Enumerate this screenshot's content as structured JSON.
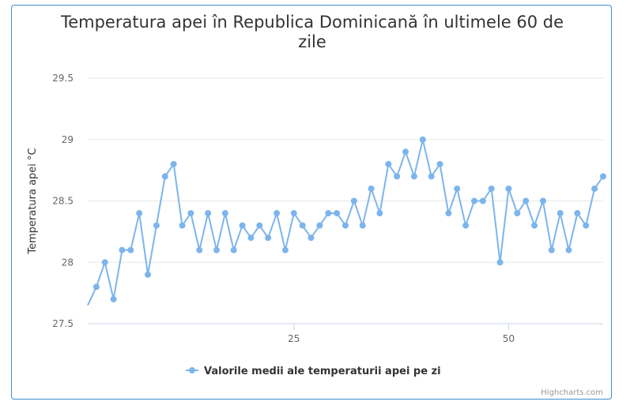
{
  "chart_data": {
    "type": "line",
    "title": "Temperatura apei în Republica Dominicană în ultimele 60 de zile",
    "title_lines": [
      "Temperatura apei în Republica Dominicană în ultimele 60 de",
      "zile"
    ],
    "ylabel": "Temperatura apei °C",
    "xlabel": "",
    "ylim": [
      27.5,
      29.5
    ],
    "yticks": [
      27.5,
      28,
      28.5,
      29,
      29.5
    ],
    "xlim": [
      1,
      61
    ],
    "xticks": [
      25,
      50
    ],
    "grid": true,
    "legend_position": "bottom",
    "series": [
      {
        "name": "Valorile medii ale temperaturii apei pe zi",
        "color": "#7cb5ec",
        "x": [
          1,
          2,
          3,
          4,
          5,
          6,
          7,
          8,
          9,
          10,
          11,
          12,
          13,
          14,
          15,
          16,
          17,
          18,
          19,
          20,
          21,
          22,
          23,
          24,
          25,
          26,
          27,
          28,
          29,
          30,
          31,
          32,
          33,
          34,
          35,
          36,
          37,
          38,
          39,
          40,
          41,
          42,
          43,
          44,
          45,
          46,
          47,
          48,
          49,
          50,
          51,
          52,
          53,
          54,
          55,
          56,
          57,
          58,
          59,
          60,
          61
        ],
        "values": [
          27.65,
          27.8,
          28.0,
          27.7,
          28.1,
          28.1,
          28.4,
          27.9,
          28.3,
          28.7,
          28.8,
          28.3,
          28.4,
          28.1,
          28.4,
          28.1,
          28.4,
          28.1,
          28.3,
          28.2,
          28.3,
          28.2,
          28.4,
          28.1,
          28.4,
          28.3,
          28.2,
          28.3,
          28.4,
          28.4,
          28.3,
          28.5,
          28.3,
          28.6,
          28.4,
          28.8,
          28.7,
          28.9,
          28.7,
          29.0,
          28.7,
          28.8,
          28.4,
          28.6,
          28.3,
          28.5,
          28.5,
          28.6,
          28.0,
          28.6,
          28.4,
          28.5,
          28.3,
          28.5,
          28.1,
          28.4,
          28.1,
          28.4,
          28.3,
          28.6,
          28.7
        ]
      }
    ]
  },
  "credits": "Highcharts.com"
}
